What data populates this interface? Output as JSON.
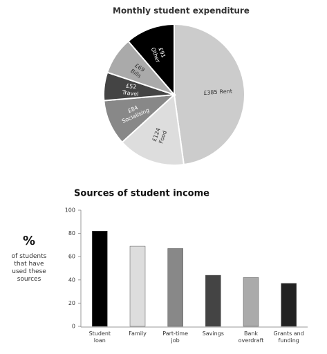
{
  "chart_data": [
    {
      "type": "pie",
      "title": "Monthly student expenditure",
      "categories": [
        "Rent",
        "Food",
        "Socialising",
        "Travel",
        "Bills",
        "Other"
      ],
      "values": [
        385,
        124,
        84,
        52,
        69,
        91
      ],
      "value_labels": [
        "£385",
        "£124",
        "£84",
        "£52",
        "£69",
        "£91"
      ],
      "colors": [
        "#cccccc",
        "#dddddd",
        "#888888",
        "#444444",
        "#aaaaaa",
        "#000000"
      ]
    },
    {
      "type": "bar",
      "title": "Sources of student income",
      "y_label_symbol": "%",
      "y_label": "of students that have used these sources",
      "categories": [
        "Student loan",
        "Family",
        "Part-time job",
        "Savings",
        "Bank overdraft",
        "Grants and funding"
      ],
      "values": [
        82,
        69,
        67,
        44,
        42,
        37
      ],
      "colors": [
        "#000000",
        "#dddddd",
        "#888888",
        "#444444",
        "#aaaaaa",
        "#222222"
      ],
      "ylim": [
        0,
        100
      ],
      "yticks": [
        0,
        20,
        40,
        60,
        80,
        100
      ],
      "grid": false
    }
  ]
}
